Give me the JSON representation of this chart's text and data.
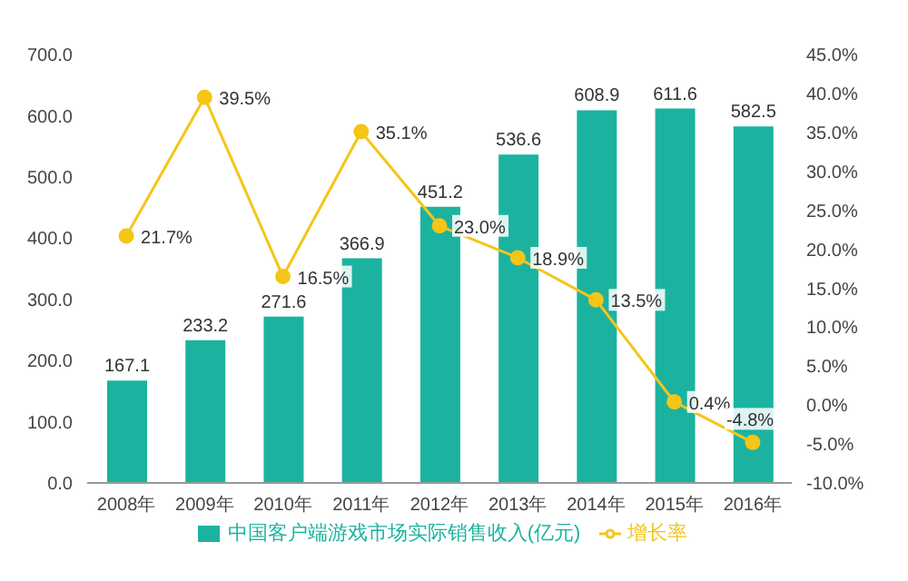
{
  "chart_data": {
    "type": "bar",
    "categories": [
      "2008年",
      "2009年",
      "2010年",
      "2011年",
      "2012年",
      "2013年",
      "2014年",
      "2015年",
      "2016年"
    ],
    "series": [
      {
        "name": "中国客户端游戏市场实际销售收入(亿元)",
        "color": "#1bb3a0",
        "values": [
          167.1,
          233.2,
          271.6,
          366.9,
          451.2,
          536.6,
          608.9,
          611.6,
          582.5
        ],
        "value_labels": [
          "167.1",
          "233.2",
          "271.6",
          "366.9",
          "451.2",
          "536.6",
          "608.9",
          "611.6",
          "582.5"
        ]
      },
      {
        "type": "line",
        "name": "增长率",
        "color": "#f5c518",
        "axis": "y2",
        "values": [
          21.7,
          39.5,
          16.5,
          35.1,
          23.0,
          18.9,
          13.5,
          0.4,
          -4.8
        ],
        "value_labels": [
          "21.7%",
          "39.5%",
          "16.5%",
          "35.1%",
          "23.0%",
          "18.9%",
          "13.5%",
          "0.4%",
          "-4.8%"
        ]
      }
    ],
    "ylim": [
      0,
      700
    ],
    "yticks": [
      {
        "value": 0,
        "label": "0.0"
      },
      {
        "value": 100,
        "label": "100.0"
      },
      {
        "value": 200,
        "label": "200.0"
      },
      {
        "value": 300,
        "label": "300.0"
      },
      {
        "value": 400,
        "label": "400.0"
      },
      {
        "value": 500,
        "label": "500.0"
      },
      {
        "value": 600,
        "label": "600.0"
      },
      {
        "value": 700,
        "label": "700.0"
      }
    ],
    "y2lim": [
      -10,
      45
    ],
    "y2ticks": [
      {
        "value": -10,
        "label": "-10.0%"
      },
      {
        "value": -5,
        "label": "-5.0%"
      },
      {
        "value": 0,
        "label": "0.0%"
      },
      {
        "value": 5,
        "label": "5.0%"
      },
      {
        "value": 10,
        "label": "10.0%"
      },
      {
        "value": 15,
        "label": "15.0%"
      },
      {
        "value": 20,
        "label": "20.0%"
      },
      {
        "value": 25,
        "label": "25.0%"
      },
      {
        "value": 30,
        "label": "30.0%"
      },
      {
        "value": 35,
        "label": "35.0%"
      },
      {
        "value": 40,
        "label": "40.0%"
      },
      {
        "value": 45,
        "label": "45.0%"
      }
    ],
    "legend": "bottom",
    "marker": "circle",
    "line_style": "solid"
  }
}
